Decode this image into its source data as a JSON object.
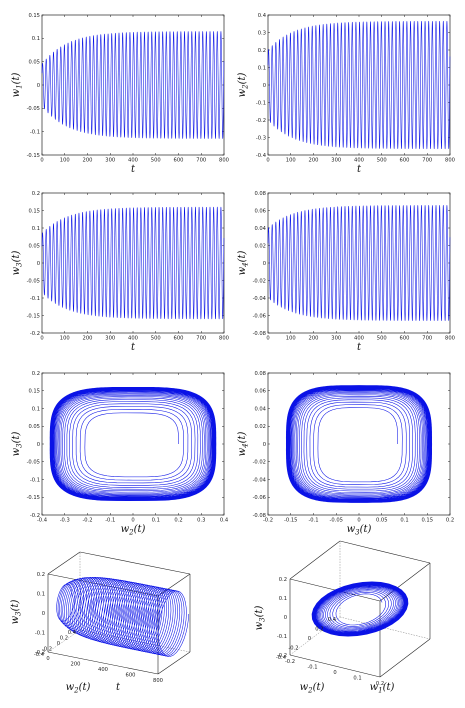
{
  "chart_data": [
    {
      "id": "w1",
      "type": "line",
      "xlabel": "t",
      "ylabel": "w_1(t)",
      "xlim": [
        0,
        800
      ],
      "ylim": [
        -0.15,
        0.15
      ],
      "xticks": [
        "0",
        "100",
        "200",
        "300",
        "400",
        "500",
        "600",
        "700",
        "800"
      ],
      "yticks": [
        "-0.15",
        "-0.1",
        "-0.05",
        "0",
        "0.05",
        "0.1",
        "0.15"
      ],
      "series": [
        {
          "center": 0.0,
          "amp_start": 0.045,
          "amp_end": 0.115,
          "period": 16
        }
      ]
    },
    {
      "id": "w2",
      "type": "line",
      "xlabel": "t",
      "ylabel": "w_2(t)",
      "xlim": [
        0,
        800
      ],
      "ylim": [
        -0.4,
        0.4
      ],
      "xticks": [
        "0",
        "100",
        "200",
        "300",
        "400",
        "500",
        "600",
        "700",
        "800"
      ],
      "yticks": [
        "-0.4",
        "-0.3",
        "-0.2",
        "-0.1",
        "0",
        "0.1",
        "0.2",
        "0.3",
        "0.4"
      ],
      "series": [
        {
          "center": 0.0,
          "amp_start": 0.2,
          "amp_end": 0.365,
          "period": 16
        }
      ]
    },
    {
      "id": "w3",
      "type": "line",
      "xlabel": "t",
      "ylabel": "w_3(t)",
      "xlim": [
        0,
        800
      ],
      "ylim": [
        -0.2,
        0.2
      ],
      "xticks": [
        "0",
        "100",
        "200",
        "300",
        "400",
        "500",
        "600",
        "700",
        "800"
      ],
      "yticks": [
        "-0.2",
        "-0.15",
        "-0.1",
        "-0.05",
        "0",
        "0.05",
        "0.1",
        "0.15",
        "0.2"
      ],
      "series": [
        {
          "center": 0.0,
          "amp_start": 0.085,
          "amp_end": 0.16,
          "period": 16
        }
      ]
    },
    {
      "id": "w4",
      "type": "line",
      "xlabel": "t",
      "ylabel": "w_4(t)",
      "xlim": [
        0,
        800
      ],
      "ylim": [
        -0.08,
        0.08
      ],
      "xticks": [
        "0",
        "100",
        "200",
        "300",
        "400",
        "500",
        "600",
        "700",
        "800"
      ],
      "yticks": [
        "-0.08",
        "-0.06",
        "-0.04",
        "-0.02",
        "0",
        "0.02",
        "0.04",
        "0.06",
        "0.08"
      ],
      "series": [
        {
          "center": 0.0,
          "amp_start": 0.04,
          "amp_end": 0.066,
          "period": 16
        }
      ]
    },
    {
      "id": "phase23",
      "type": "line",
      "xlabel": "w_2(t)",
      "ylabel": "w_3(t)",
      "xlim": [
        -0.4,
        0.4
      ],
      "ylim": [
        -0.2,
        0.2
      ],
      "xticks": [
        "-0.4",
        "-0.3",
        "-0.2",
        "-0.1",
        "0",
        "0.1",
        "0.2",
        "0.3",
        "0.4"
      ],
      "yticks": [
        "-0.2",
        "-0.15",
        "-0.1",
        "-0.05",
        "0",
        "0.05",
        "0.1",
        "0.15",
        "0.2"
      ],
      "series": [
        {
          "rx_start": 0.2,
          "rx_end": 0.365,
          "ry_start": 0.085,
          "ry_end": 0.16
        }
      ]
    },
    {
      "id": "phase34",
      "type": "line",
      "xlabel": "w_3(t)",
      "ylabel": "w_4(t)",
      "xlim": [
        -0.2,
        0.2
      ],
      "ylim": [
        -0.08,
        0.08
      ],
      "xticks": [
        "-0.2",
        "-0.15",
        "-0.1",
        "-0.05",
        "0",
        "0.05",
        "0.1",
        "0.15",
        "0.2"
      ],
      "yticks": [
        "-0.08",
        "-0.06",
        "-0.04",
        "-0.02",
        "0",
        "0.02",
        "0.04",
        "0.06",
        "0.08"
      ],
      "series": [
        {
          "rx_start": 0.085,
          "rx_end": 0.16,
          "ry_start": 0.04,
          "ry_end": 0.066
        }
      ]
    },
    {
      "id": "surf3d_t",
      "type": "line",
      "xlabel": "t",
      "ylabel": "w_2(t)",
      "zlabel": "w_3(t)",
      "xlim": [
        0,
        800
      ],
      "ylim": [
        -0.4,
        0.4
      ],
      "zlim": [
        -0.2,
        0.2
      ],
      "xticks": [
        "0",
        "200",
        "400",
        "600",
        "800"
      ],
      "yticks": [
        "-0.4",
        "-0.2",
        "0",
        "0.2",
        "0.4"
      ],
      "zticks": [
        "-0.2",
        "-0.1",
        "0",
        "0.1",
        "0.2"
      ]
    },
    {
      "id": "surf3d_w1",
      "type": "line",
      "xlabel": "w_1(t)",
      "ylabel": "w_2(t)",
      "zlabel": "w_3(t)",
      "xlim": [
        -0.2,
        0.2
      ],
      "ylim": [
        -0.4,
        0.4
      ],
      "zlim": [
        -0.2,
        0.2
      ],
      "xticks": [
        "-0.2",
        "-0.1",
        "0",
        "0.1",
        "0.2"
      ],
      "yticks": [
        "-0.4",
        "-0.2",
        "0",
        "0.2",
        "0.4"
      ],
      "zticks": [
        "-0.2",
        "-0.1",
        "0",
        "0.1",
        "0.2"
      ]
    }
  ]
}
